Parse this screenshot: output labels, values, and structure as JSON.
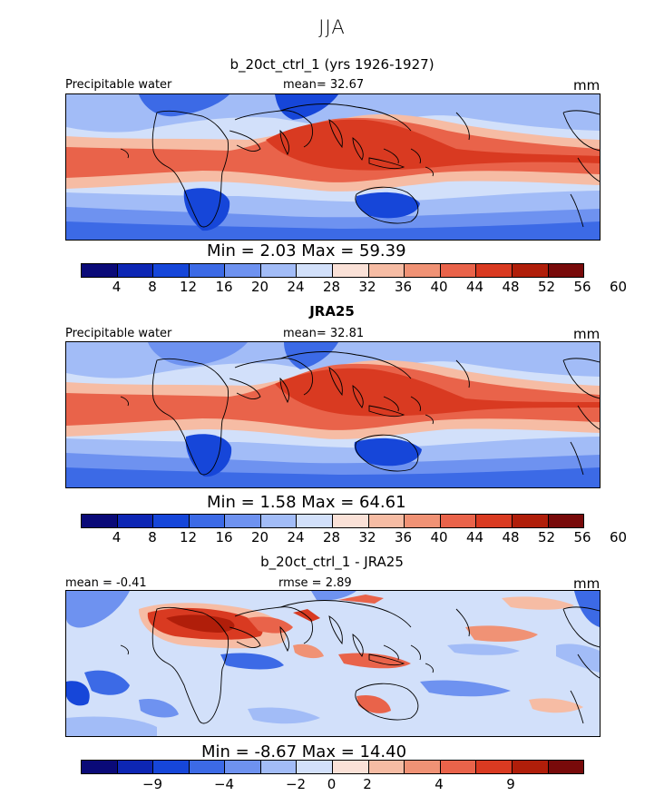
{
  "season": "JJA",
  "panels": [
    {
      "title": "b_20ct_ctrl_1 (yrs 1926-1927)",
      "left_label": "Precipitable water",
      "center_label": "mean=  32.67",
      "units": "mm",
      "minmax": "Min =    2.03  Max =   59.39",
      "scale": "mean"
    },
    {
      "title": "JRA25",
      "left_label": "Precipitable water",
      "center_label": "mean=  32.81",
      "units": "mm",
      "minmax": "Min =    1.58  Max =   64.61",
      "scale": "mean"
    },
    {
      "title": "b_20ct_ctrl_1 - JRA25",
      "left_label": "mean =  -0.41",
      "center_label": "rmse =   2.89",
      "units": "mm",
      "minmax": "Min =  -8.67  Max =   14.40",
      "scale": "diff"
    }
  ],
  "colorbar_mean": {
    "colors": [
      "#0a0a78",
      "#0d26b4",
      "#1646d9",
      "#3c6ae6",
      "#6e92f0",
      "#a2bcf7",
      "#d2e0fa",
      "#fae1d7",
      "#f6bca4",
      "#f09275",
      "#e9634a",
      "#d93a21",
      "#b01e0a",
      "#780a0a"
    ],
    "ticks": [
      "4",
      "8",
      "12",
      "16",
      "20",
      "24",
      "28",
      "32",
      "36",
      "40",
      "44",
      "48",
      "52",
      "56",
      "60"
    ]
  },
  "colorbar_diff": {
    "colors": [
      "#0a0a78",
      "#0d26b4",
      "#1646d9",
      "#3c6ae6",
      "#6e92f0",
      "#a2bcf7",
      "#d2e0fa",
      "#fae1d7",
      "#f6bca4",
      "#f09275",
      "#e9634a",
      "#d93a21",
      "#b01e0a",
      "#780a0a"
    ],
    "ticks": [
      "-9",
      "-4",
      "-2",
      "0",
      "2",
      "4",
      "9"
    ]
  }
}
